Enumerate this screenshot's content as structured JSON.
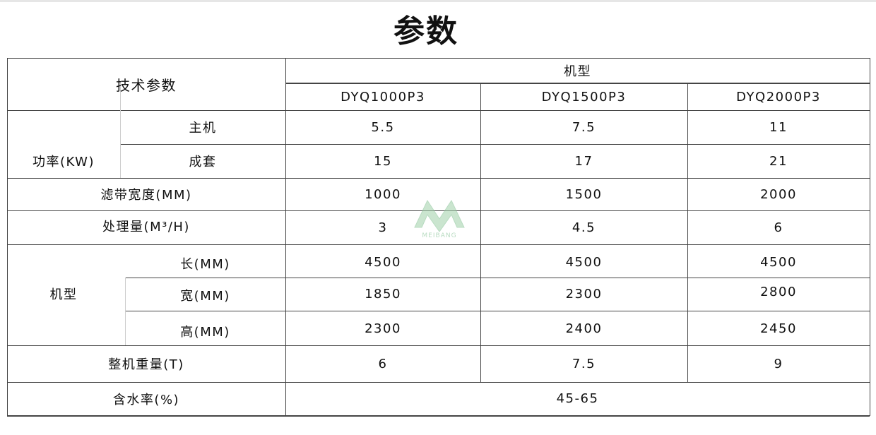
{
  "title": "参数",
  "header": {
    "tech_params": "技术参数",
    "model": "机型",
    "models": [
      "DYQ1000P3",
      "DYQ1500P3",
      "DYQ2000P3"
    ]
  },
  "rows": {
    "power": {
      "label": "功率(KW)",
      "main": {
        "label": "主机",
        "values": [
          "5.5",
          "7.5",
          "11"
        ]
      },
      "set": {
        "label": "成套",
        "values": [
          "15",
          "17",
          "21"
        ]
      }
    },
    "belt_width": {
      "label": "滤带宽度(MM)",
      "values": [
        "1000",
        "1500",
        "2000"
      ]
    },
    "capacity": {
      "label": "处理量(M³/H)",
      "values": [
        "3",
        "4.5",
        "6"
      ]
    },
    "dimensions": {
      "label": "机型",
      "length": {
        "label": "长(MM)",
        "values": [
          "4500",
          "4500",
          "4500"
        ]
      },
      "width": {
        "label": "宽(MM)",
        "values": [
          "1850",
          "2300",
          "2800"
        ]
      },
      "height": {
        "label": "高(MM)",
        "values": [
          "2300",
          "2400",
          "2450"
        ]
      }
    },
    "weight": {
      "label": "整机重量(T)",
      "values": [
        "6",
        "7.5",
        "9"
      ]
    },
    "moisture": {
      "label": "含水率(%)",
      "value": "45-65"
    }
  },
  "watermark": {
    "text": "MEIBANG",
    "color": "#7fbf8f"
  }
}
